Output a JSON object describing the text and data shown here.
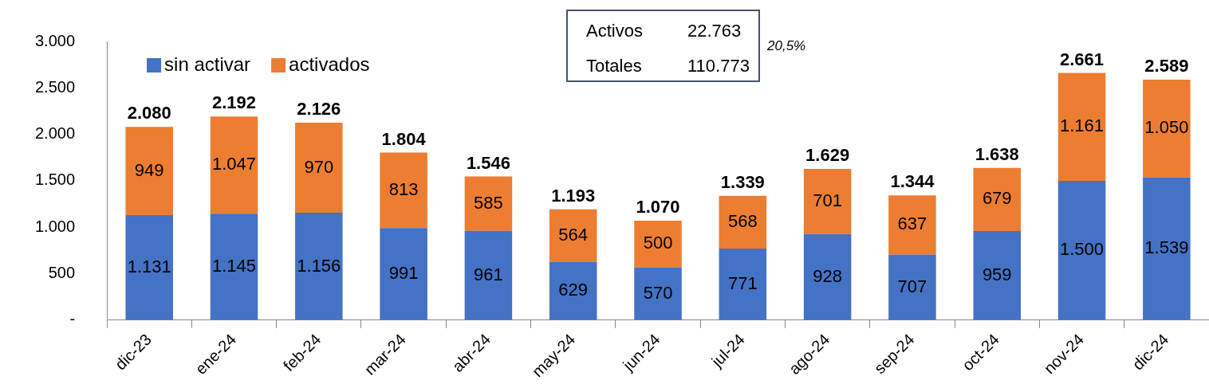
{
  "chart_data": {
    "type": "bar",
    "stacked": true,
    "categories": [
      "dic-23",
      "ene-24",
      "feb-24",
      "mar-24",
      "abr-24",
      "may-24",
      "jun-24",
      "jul-24",
      "ago-24",
      "sep-24",
      "oct-24",
      "nov-24",
      "dic-24"
    ],
    "series": [
      {
        "name": "sin activar",
        "color": "#4472c4",
        "values": [
          1131,
          1145,
          1156,
          991,
          961,
          629,
          570,
          771,
          928,
          707,
          959,
          1500,
          1539
        ],
        "value_labels": [
          "1.131",
          "1.145",
          "1.156",
          "991",
          "961",
          "629",
          "570",
          "771",
          "928",
          "707",
          "959",
          "1.500",
          "1.539"
        ]
      },
      {
        "name": "activados",
        "color": "#ed7d31",
        "values": [
          949,
          1047,
          970,
          813,
          585,
          564,
          500,
          568,
          701,
          637,
          679,
          1161,
          1050
        ],
        "value_labels": [
          "949",
          "1.047",
          "970",
          "813",
          "585",
          "564",
          "500",
          "568",
          "701",
          "637",
          "679",
          "1.161",
          "1.050"
        ]
      }
    ],
    "totals": [
      "2.080",
      "2.192",
      "2.126",
      "1.804",
      "1.546",
      "1.193",
      "1.070",
      "1.339",
      "1.629",
      "1.344",
      "1.638",
      "2.661",
      "2.589"
    ],
    "ylim": [
      0,
      3000
    ],
    "yticks": [
      {
        "value": 0,
        "label": "-"
      },
      {
        "value": 500,
        "label": "500"
      },
      {
        "value": 1000,
        "label": "1.000"
      },
      {
        "value": 1500,
        "label": "1.500"
      },
      {
        "value": 2000,
        "label": "2.000"
      },
      {
        "value": 2500,
        "label": "2.500"
      },
      {
        "value": 3000,
        "label": "3.000"
      }
    ],
    "legend": "top left",
    "annotations": [
      "Activos",
      "22.763",
      "Totales",
      "110.773",
      "20,5%"
    ]
  }
}
